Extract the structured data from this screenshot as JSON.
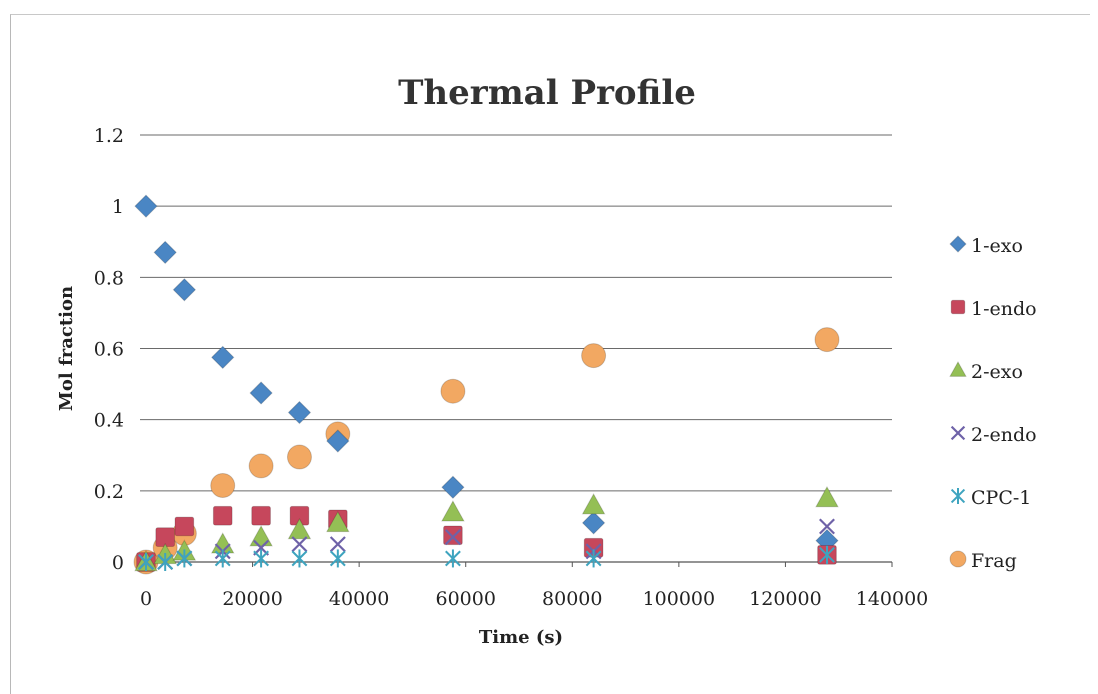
{
  "chart_data": {
    "type": "scatter",
    "title": "Thermal Profile",
    "xlabel": "Time (s)",
    "ylabel": "Mol fraction",
    "xlim": [
      0,
      140000
    ],
    "ylim": [
      0,
      1.2
    ],
    "xticks": [
      0,
      20000,
      40000,
      60000,
      80000,
      100000,
      120000,
      140000
    ],
    "yticks": [
      0,
      0.2,
      0.4,
      0.6,
      0.8,
      1,
      1.2
    ],
    "grid": "horizontal",
    "legend_position": "right",
    "series": [
      {
        "name": "1-exo",
        "marker": "diamond",
        "color": "#4a86c4",
        "x": [
          0,
          3600,
          7200,
          14400,
          21600,
          28800,
          36000,
          57600,
          84000,
          127800
        ],
        "y": [
          1.0,
          0.87,
          0.765,
          0.575,
          0.475,
          0.42,
          0.34,
          0.21,
          0.11,
          0.06
        ]
      },
      {
        "name": "1-endo",
        "marker": "square",
        "color": "#c6475c",
        "x": [
          0,
          3600,
          7200,
          14400,
          21600,
          28800,
          36000,
          57600,
          84000,
          127800
        ],
        "y": [
          0.0,
          0.07,
          0.1,
          0.13,
          0.13,
          0.13,
          0.12,
          0.075,
          0.04,
          0.02
        ]
      },
      {
        "name": "2-exo",
        "marker": "triangle",
        "color": "#94bf55",
        "x": [
          0,
          3600,
          7200,
          14400,
          21600,
          28800,
          36000,
          57600,
          84000,
          127800
        ],
        "y": [
          0.0,
          0.02,
          0.03,
          0.05,
          0.07,
          0.09,
          0.11,
          0.14,
          0.16,
          0.18
        ]
      },
      {
        "name": "2-endo",
        "marker": "x",
        "color": "#6e62a8",
        "x": [
          0,
          3600,
          7200,
          14400,
          21600,
          28800,
          36000,
          57600,
          84000,
          127800
        ],
        "y": [
          0.0,
          0.0,
          0.01,
          0.03,
          0.04,
          0.05,
          0.05,
          0.07,
          0.03,
          0.1
        ]
      },
      {
        "name": "CPC-1",
        "marker": "star",
        "color": "#3ea4bf",
        "x": [
          0,
          3600,
          7200,
          14400,
          21600,
          28800,
          36000,
          57600,
          84000,
          127800
        ],
        "y": [
          0.0,
          0.0,
          0.01,
          0.01,
          0.01,
          0.01,
          0.01,
          0.01,
          0.01,
          0.02
        ]
      },
      {
        "name": "Frag",
        "marker": "circle",
        "color": "#f2a862",
        "x": [
          0,
          3600,
          7200,
          14400,
          21600,
          28800,
          36000,
          57600,
          84000,
          127800
        ],
        "y": [
          0.0,
          0.04,
          0.08,
          0.215,
          0.27,
          0.295,
          0.36,
          0.48,
          0.58,
          0.625
        ]
      }
    ]
  }
}
